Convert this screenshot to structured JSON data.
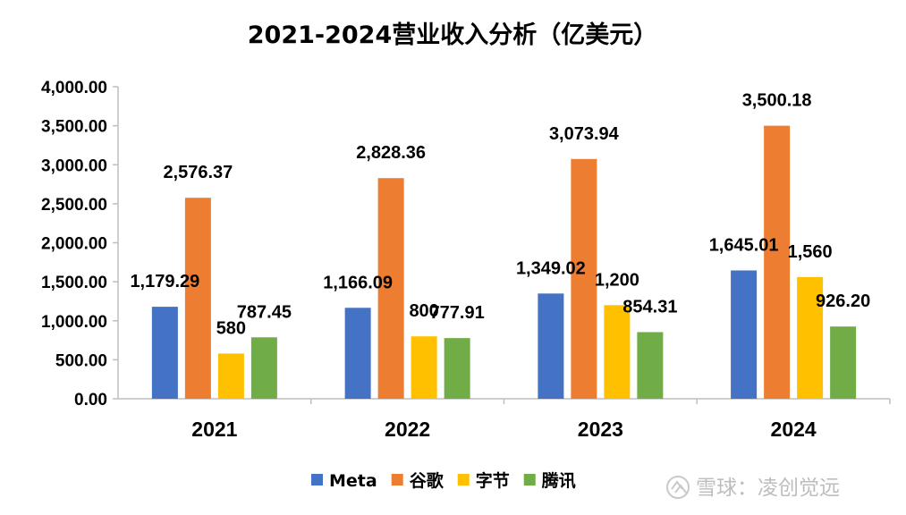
{
  "chart_data": {
    "type": "bar",
    "title": "2021-2024营业收入分析（亿美元）",
    "categories": [
      "2021",
      "2022",
      "2023",
      "2024"
    ],
    "series": [
      {
        "name": "Meta",
        "color": "#4472c4",
        "values": [
          1179.29,
          1166.09,
          1349.02,
          1645.01
        ],
        "labels": [
          "1,179.29",
          "1,166.09",
          "1,349.02",
          "1,645.01"
        ]
      },
      {
        "name": "谷歌",
        "color": "#ed7d31",
        "values": [
          2576.37,
          2828.36,
          3073.94,
          3500.18
        ],
        "labels": [
          "2,576.37",
          "2,828.36",
          "3,073.94",
          "3,500.18"
        ]
      },
      {
        "name": "字节",
        "color": "#ffc000",
        "values": [
          580,
          800,
          1200,
          1560
        ],
        "labels": [
          "580",
          "800",
          "1,200",
          "1,560"
        ]
      },
      {
        "name": "腾讯",
        "color": "#70ad47",
        "values": [
          787.45,
          777.91,
          854.31,
          926.2
        ],
        "labels": [
          "787.45",
          "777.91",
          "854.31",
          "926.20"
        ]
      }
    ],
    "ylim": [
      0,
      4000
    ],
    "yticks": [
      "0.00",
      "500.00",
      "1,000.00",
      "1,500.00",
      "2,000.00",
      "2,500.00",
      "3,000.00",
      "3,500.00",
      "4,000.00"
    ],
    "grid": false,
    "legend_position": "bottom"
  },
  "watermark": "雪球：凌创觉远"
}
